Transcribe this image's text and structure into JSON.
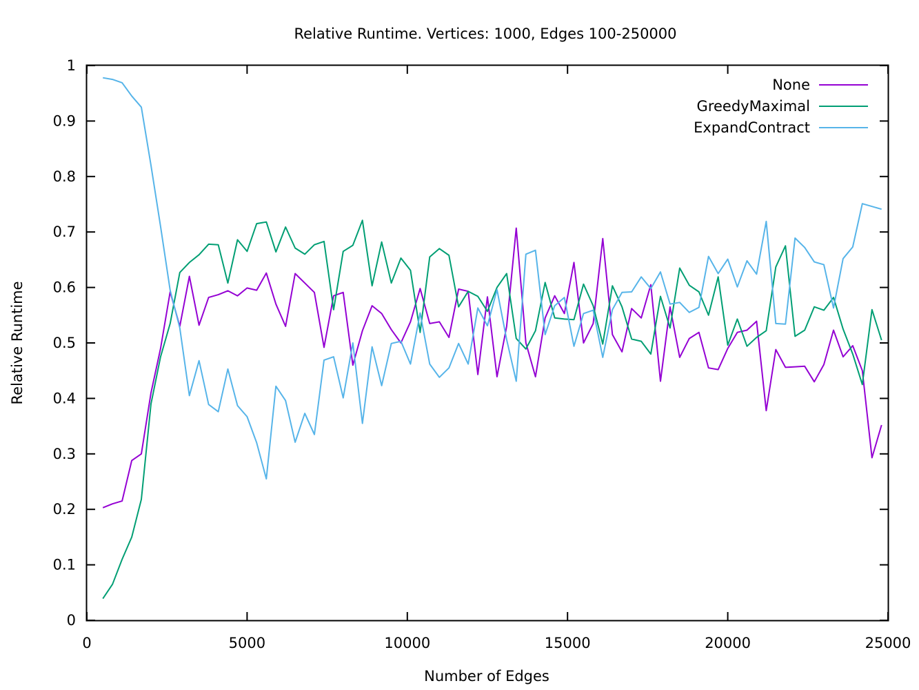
{
  "chart_data": {
    "type": "line",
    "title": "Relative Runtime. Vertices: 1000, Edges 100-250000",
    "xlabel": "Number of Edges",
    "ylabel": "Relative Runtime",
    "xlim": [
      0,
      25000
    ],
    "ylim": [
      0,
      1
    ],
    "x_ticks": [
      0,
      5000,
      10000,
      15000,
      20000,
      25000
    ],
    "y_ticks": [
      0,
      0.1,
      0.2,
      0.3,
      0.4,
      0.5,
      0.6,
      0.7,
      0.8,
      0.9,
      1
    ],
    "x_tick_labels": [
      "0",
      "5000",
      "10000",
      "15000",
      "20000",
      "25000"
    ],
    "y_tick_labels": [
      "0",
      "0.1",
      "0.2",
      "0.3",
      "0.4",
      "0.5",
      "0.6",
      "0.7",
      "0.8",
      "0.9",
      "1"
    ],
    "grid": false,
    "legend_position": "top-right",
    "x": [
      500,
      800,
      1100,
      1400,
      1700,
      2000,
      2300,
      2600,
      2900,
      3200,
      3500,
      3800,
      4100,
      4400,
      4700,
      5000,
      5300,
      5600,
      5900,
      6200,
      6500,
      6800,
      7100,
      7400,
      7700,
      8000,
      8300,
      8600,
      8900,
      9200,
      9500,
      9800,
      10100,
      10400,
      10700,
      11000,
      11300,
      11600,
      11900,
      12200,
      12500,
      12800,
      13100,
      13400,
      13700,
      14000,
      14300,
      14600,
      14900,
      15200,
      15500,
      15800,
      16100,
      16400,
      16700,
      17000,
      17300,
      17600,
      17900,
      18200,
      18500,
      18800,
      19100,
      19400,
      19700,
      20000,
      20300,
      20600,
      20900,
      21200,
      21500,
      21800,
      22100,
      22400,
      22700,
      23000,
      23300,
      23600,
      23900,
      24200,
      24500,
      24800
    ],
    "series": [
      {
        "name": "None",
        "color": "#9400d3",
        "values": [
          0.203,
          0.21,
          0.215,
          0.288,
          0.3,
          0.41,
          0.49,
          0.592,
          0.53,
          0.62,
          0.532,
          0.582,
          0.587,
          0.594,
          0.585,
          0.599,
          0.595,
          0.626,
          0.57,
          0.53,
          0.625,
          0.608,
          0.591,
          0.492,
          0.585,
          0.591,
          0.46,
          0.522,
          0.567,
          0.553,
          0.524,
          0.5,
          0.538,
          0.598,
          0.535,
          0.538,
          0.51,
          0.597,
          0.593,
          0.443,
          0.583,
          0.439,
          0.53,
          0.707,
          0.5,
          0.439,
          0.545,
          0.585,
          0.553,
          0.645,
          0.5,
          0.535,
          0.688,
          0.515,
          0.484,
          0.562,
          0.545,
          0.605,
          0.431,
          0.565,
          0.474,
          0.508,
          0.519,
          0.455,
          0.452,
          0.49,
          0.519,
          0.523,
          0.539,
          0.378,
          0.488,
          0.456,
          0.457,
          0.458,
          0.43,
          0.461,
          0.523,
          0.475,
          0.495,
          0.45,
          0.293,
          0.352
        ]
      },
      {
        "name": "GreedyMaximal",
        "color": "#009e73",
        "values": [
          0.039,
          0.065,
          0.11,
          0.15,
          0.218,
          0.39,
          0.475,
          0.535,
          0.627,
          0.645,
          0.659,
          0.678,
          0.677,
          0.608,
          0.686,
          0.665,
          0.715,
          0.718,
          0.664,
          0.709,
          0.671,
          0.66,
          0.677,
          0.683,
          0.56,
          0.665,
          0.676,
          0.721,
          0.603,
          0.682,
          0.608,
          0.653,
          0.631,
          0.519,
          0.655,
          0.67,
          0.658,
          0.565,
          0.593,
          0.584,
          0.557,
          0.6,
          0.625,
          0.508,
          0.489,
          0.522,
          0.609,
          0.545,
          0.543,
          0.542,
          0.606,
          0.567,
          0.498,
          0.603,
          0.565,
          0.507,
          0.503,
          0.48,
          0.584,
          0.527,
          0.635,
          0.604,
          0.592,
          0.55,
          0.619,
          0.496,
          0.543,
          0.494,
          0.51,
          0.522,
          0.637,
          0.675,
          0.512,
          0.523,
          0.565,
          0.559,
          0.582,
          0.525,
          0.48,
          0.425,
          0.56,
          0.505
        ]
      },
      {
        "name": "ExpandContract",
        "color": "#56b4e9",
        "values": [
          0.978,
          0.975,
          0.969,
          0.945,
          0.925,
          0.82,
          0.71,
          0.595,
          0.527,
          0.405,
          0.468,
          0.389,
          0.376,
          0.453,
          0.387,
          0.367,
          0.32,
          0.255,
          0.422,
          0.396,
          0.321,
          0.373,
          0.335,
          0.469,
          0.475,
          0.401,
          0.5,
          0.355,
          0.493,
          0.423,
          0.499,
          0.503,
          0.462,
          0.554,
          0.462,
          0.438,
          0.455,
          0.499,
          0.462,
          0.563,
          0.531,
          0.596,
          0.506,
          0.431,
          0.66,
          0.667,
          0.515,
          0.567,
          0.582,
          0.494,
          0.553,
          0.559,
          0.474,
          0.56,
          0.591,
          0.592,
          0.619,
          0.598,
          0.628,
          0.57,
          0.573,
          0.555,
          0.564,
          0.656,
          0.625,
          0.651,
          0.601,
          0.648,
          0.624,
          0.719,
          0.535,
          0.534,
          0.689,
          0.672,
          0.646,
          0.641,
          0.563,
          0.652,
          0.673,
          0.751,
          0.746,
          0.741
        ]
      }
    ]
  }
}
